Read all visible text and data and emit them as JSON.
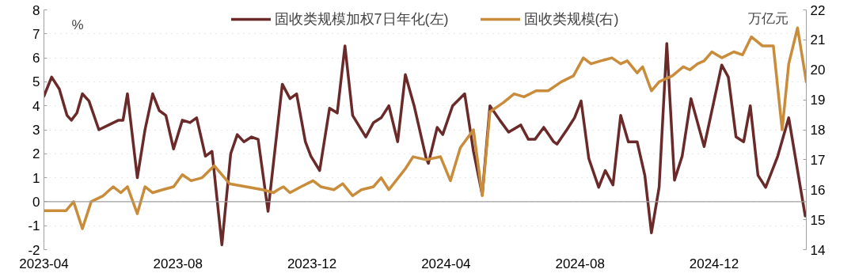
{
  "chart_data": {
    "type": "line",
    "ylabel": "%",
    "y2label": "万亿元",
    "xlim": [
      "2023-04-01",
      "2025-02-23"
    ],
    "xticks": [
      "2023-04",
      "2023-08",
      "2023-12",
      "2024-04",
      "2024-08",
      "2024-12"
    ],
    "ylim": [
      -2,
      8
    ],
    "yticks": [
      -2,
      -1,
      0,
      1,
      2,
      3,
      4,
      5,
      6,
      7,
      8
    ],
    "y2lim": [
      14,
      22
    ],
    "y2ticks": [
      14,
      15,
      16,
      17,
      18,
      19,
      20,
      21,
      22
    ],
    "grid": "y",
    "legend": "top",
    "line_style": "solid",
    "marker": "none",
    "series": [
      {
        "name": "固收类规模加权7日年化(左)",
        "color": "#6b2a2a",
        "axis": "y",
        "x": [
          "2023-04-01",
          "2023-04-08",
          "2023-04-15",
          "2023-04-22",
          "2023-04-26",
          "2023-05-01",
          "2023-05-06",
          "2023-05-12",
          "2023-05-21",
          "2023-05-30",
          "2023-06-08",
          "2023-06-12",
          "2023-06-16",
          "2023-06-25",
          "2023-07-02",
          "2023-07-09",
          "2023-07-15",
          "2023-07-21",
          "2023-07-28",
          "2023-08-05",
          "2023-08-12",
          "2023-08-18",
          "2023-08-26",
          "2023-09-01",
          "2023-09-10",
          "2023-09-18",
          "2023-09-24",
          "2023-09-30",
          "2023-10-07",
          "2023-10-13",
          "2023-10-22",
          "2023-11-04",
          "2023-11-11",
          "2023-11-17",
          "2023-11-25",
          "2023-11-30",
          "2023-12-08",
          "2023-12-17",
          "2023-12-24",
          "2023-12-31",
          "2024-01-07",
          "2024-01-19",
          "2024-01-26",
          "2024-02-02",
          "2024-02-09",
          "2024-02-17",
          "2024-02-24",
          "2024-03-03",
          "2024-03-14",
          "2024-03-16",
          "2024-03-24",
          "2024-03-29",
          "2024-04-07",
          "2024-04-18",
          "2024-04-26",
          "2024-05-04",
          "2024-05-11",
          "2024-05-20",
          "2024-05-28",
          "2024-06-08",
          "2024-06-15",
          "2024-06-21",
          "2024-06-29",
          "2024-07-08",
          "2024-07-11",
          "2024-07-20",
          "2024-07-27",
          "2024-08-02",
          "2024-08-09",
          "2024-08-18",
          "2024-08-24",
          "2024-08-31",
          "2024-09-07",
          "2024-09-14",
          "2024-09-22",
          "2024-09-29",
          "2024-10-05",
          "2024-10-12",
          "2024-10-19",
          "2024-10-26",
          "2024-11-02",
          "2024-11-10",
          "2024-11-22",
          "2024-12-08",
          "2024-12-14",
          "2024-12-21",
          "2024-12-28",
          "2025-01-03",
          "2025-01-10",
          "2025-01-17",
          "2025-01-28",
          "2025-02-07",
          "2025-02-22"
        ],
        "values": [
          4.4,
          5.2,
          4.7,
          3.6,
          3.4,
          3.7,
          4.5,
          4.2,
          3.0,
          3.2,
          3.4,
          3.4,
          4.5,
          1.0,
          3.0,
          4.5,
          3.8,
          3.6,
          2.2,
          3.4,
          3.3,
          3.5,
          1.9,
          2.1,
          -1.8,
          2.0,
          2.8,
          2.5,
          2.7,
          2.6,
          -0.4,
          4.9,
          4.3,
          4.5,
          2.5,
          1.9,
          1.3,
          3.9,
          3.7,
          6.5,
          3.6,
          2.7,
          3.3,
          3.5,
          4.0,
          2.5,
          5.3,
          4.0,
          1.8,
          1.6,
          3.1,
          2.8,
          4.0,
          4.5,
          2.1,
          0.3,
          4.0,
          3.4,
          2.9,
          3.2,
          2.6,
          2.6,
          3.1,
          2.5,
          2.4,
          3.0,
          3.5,
          4.2,
          1.8,
          0.6,
          1.3,
          0.7,
          3.6,
          2.5,
          2.5,
          1.1,
          -1.3,
          0.6,
          6.6,
          0.9,
          1.9,
          4.3,
          2.3,
          5.7,
          5.2,
          2.7,
          2.5,
          4.0,
          1.1,
          0.6,
          1.9,
          3.5,
          -0.6
        ]
      },
      {
        "name": "固收类规模(右)",
        "color": "#c98c3a",
        "axis": "y2",
        "x": [
          "2023-04-01",
          "2023-04-21",
          "2023-04-28",
          "2023-05-06",
          "2023-05-14",
          "2023-05-25",
          "2023-06-03",
          "2023-06-10",
          "2023-06-16",
          "2023-06-25",
          "2023-07-02",
          "2023-07-09",
          "2023-07-18",
          "2023-07-28",
          "2023-08-05",
          "2023-08-13",
          "2023-08-23",
          "2023-09-03",
          "2023-09-17",
          "2023-10-02",
          "2023-10-17",
          "2023-10-27",
          "2023-10-31",
          "2023-11-05",
          "2023-11-11",
          "2023-11-21",
          "2023-12-02",
          "2023-12-09",
          "2023-12-21",
          "2023-12-29",
          "2024-01-07",
          "2024-01-15",
          "2024-01-26",
          "2024-02-02",
          "2024-02-09",
          "2024-02-24",
          "2024-03-02",
          "2024-03-14",
          "2024-03-27",
          "2024-04-05",
          "2024-04-14",
          "2024-04-26",
          "2024-05-04",
          "2024-05-11",
          "2024-05-23",
          "2024-06-02",
          "2024-06-11",
          "2024-06-22",
          "2024-07-03",
          "2024-07-15",
          "2024-07-26",
          "2024-08-04",
          "2024-08-11",
          "2024-08-20",
          "2024-08-30",
          "2024-09-07",
          "2024-09-13",
          "2024-09-22",
          "2024-09-27",
          "2024-10-05",
          "2024-10-12",
          "2024-10-24",
          "2024-11-03",
          "2024-11-09",
          "2024-11-16",
          "2024-11-22",
          "2024-11-29",
          "2024-12-08",
          "2024-12-19",
          "2024-12-27",
          "2025-01-04",
          "2025-01-14",
          "2025-01-24",
          "2025-02-01",
          "2025-02-07",
          "2025-02-15",
          "2025-02-23"
        ],
        "values": [
          15.3,
          15.3,
          15.6,
          14.7,
          15.6,
          15.8,
          16.1,
          15.9,
          16.1,
          15.2,
          16.1,
          15.9,
          16.0,
          16.1,
          16.5,
          16.3,
          16.4,
          16.8,
          16.2,
          16.1,
          16.0,
          15.9,
          16.0,
          16.1,
          15.9,
          16.1,
          16.3,
          16.1,
          16.0,
          16.2,
          15.8,
          16.0,
          16.1,
          16.4,
          16.0,
          16.7,
          17.1,
          17.0,
          17.1,
          16.3,
          17.4,
          18.0,
          15.8,
          18.6,
          18.9,
          19.2,
          19.1,
          19.3,
          19.3,
          19.6,
          19.8,
          20.4,
          20.2,
          20.3,
          20.4,
          20.2,
          20.3,
          19.9,
          20.1,
          19.3,
          19.6,
          19.8,
          20.1,
          20.0,
          20.2,
          20.3,
          20.6,
          20.4,
          20.6,
          20.5,
          21.1,
          20.8,
          20.8,
          18.0,
          20.2,
          21.4,
          19.6
        ]
      }
    ]
  }
}
